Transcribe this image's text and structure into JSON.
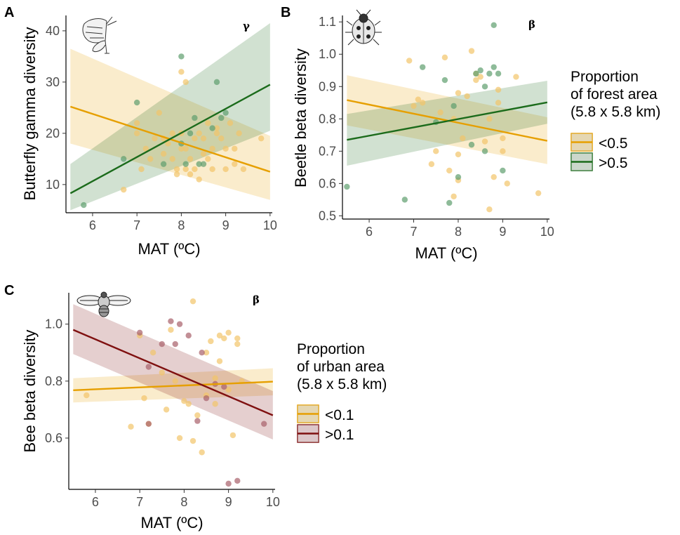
{
  "figure": {
    "panels": [
      {
        "letter": "A",
        "metric": "γ",
        "icon": "butterfly-icon"
      },
      {
        "letter": "B",
        "metric": "β",
        "icon": "ladybird-beetle-icon"
      },
      {
        "letter": "C",
        "metric": "β",
        "icon": "bee-icon"
      }
    ],
    "legends": [
      {
        "title_lines": [
          "Proportion",
          "of forest area",
          "(5.8 x 5.8 km)"
        ],
        "items": [
          "<0.5",
          ">0.5"
        ]
      },
      {
        "title_lines": [
          "Proportion",
          "of urban area",
          "(5.8 x 5.8 km)"
        ],
        "items": [
          "<0.1",
          ">0.1"
        ]
      }
    ]
  },
  "colors": {
    "orange": "#E69F00",
    "green": "#1B6B1B",
    "green_point": "#5E9E6E",
    "darkred": "#7F1010",
    "darkred_point": "#A8606A"
  },
  "chart_data": [
    {
      "type": "scatter",
      "panel": "A",
      "xlabel": "MAT (ºC)",
      "ylabel": "Butterfly gamma diversity",
      "xlim": [
        5.4,
        10.05
      ],
      "ylim": [
        4.5,
        43
      ],
      "xticks": [
        6,
        7,
        8,
        9,
        10
      ],
      "yticks": [
        10,
        20,
        30,
        40
      ],
      "grid": false,
      "legend": "right",
      "series": [
        {
          "name": "<0.5",
          "color": "#E69F00",
          "points": [
            [
              6.7,
              9
            ],
            [
              7.0,
              22
            ],
            [
              7.0,
              20
            ],
            [
              7.1,
              13
            ],
            [
              7.2,
              17
            ],
            [
              7.3,
              15
            ],
            [
              7.4,
              19
            ],
            [
              7.5,
              24
            ],
            [
              7.6,
              16
            ],
            [
              7.6,
              19
            ],
            [
              7.7,
              18
            ],
            [
              7.8,
              20
            ],
            [
              7.8,
              15
            ],
            [
              7.9,
              13
            ],
            [
              7.9,
              12
            ],
            [
              8.0,
              32
            ],
            [
              8.0,
              17
            ],
            [
              8.0,
              20
            ],
            [
              8.1,
              30
            ],
            [
              8.1,
              17
            ],
            [
              8.1,
              13
            ],
            [
              8.2,
              12
            ],
            [
              8.2,
              15
            ],
            [
              8.3,
              19
            ],
            [
              8.3,
              13
            ],
            [
              8.4,
              20
            ],
            [
              8.4,
              11
            ],
            [
              8.5,
              19
            ],
            [
              8.5,
              16
            ],
            [
              8.6,
              22
            ],
            [
              8.6,
              15
            ],
            [
              8.7,
              17
            ],
            [
              8.7,
              13
            ],
            [
              8.8,
              20
            ],
            [
              8.8,
              21
            ],
            [
              8.9,
              19
            ],
            [
              9.0,
              17
            ],
            [
              9.0,
              13
            ],
            [
              9.1,
              22
            ],
            [
              9.2,
              17
            ],
            [
              9.2,
              14
            ],
            [
              9.3,
              20
            ],
            [
              9.4,
              13
            ],
            [
              9.8,
              19
            ]
          ],
          "fit": {
            "x": [
              5.5,
              10.0
            ],
            "y_start": 25.2,
            "y_end": 12.5,
            "ci_lower": [
              18.0,
              7.0
            ],
            "ci_upper": [
              36.5,
              19.5
            ]
          }
        },
        {
          "name": ">0.5",
          "color": "#1B6B1B",
          "points": [
            [
              5.8,
              6
            ],
            [
              6.7,
              15
            ],
            [
              7.0,
              26
            ],
            [
              7.6,
              14
            ],
            [
              8.0,
              35
            ],
            [
              8.0,
              18
            ],
            [
              8.1,
              14
            ],
            [
              8.2,
              20
            ],
            [
              8.3,
              23
            ],
            [
              8.4,
              14
            ],
            [
              8.5,
              14
            ],
            [
              8.7,
              21
            ],
            [
              8.8,
              30
            ],
            [
              8.9,
              23
            ],
            [
              9.0,
              24
            ]
          ],
          "fit": {
            "x": [
              5.5,
              10.0
            ],
            "y_start": 8.3,
            "y_end": 29.5,
            "ci_lower": [
              5.0,
              20.5
            ],
            "ci_upper": [
              14.0,
              41.5
            ]
          }
        }
      ]
    },
    {
      "type": "scatter",
      "panel": "B",
      "xlabel": "MAT (ºC)",
      "ylabel": "Beetle beta diversity",
      "xlim": [
        5.4,
        10.05
      ],
      "ylim": [
        0.49,
        1.12
      ],
      "xticks": [
        6,
        7,
        8,
        9,
        10
      ],
      "yticks": [
        0.5,
        0.6,
        0.7,
        0.8,
        0.9,
        1.0,
        1.1
      ],
      "grid": false,
      "legend": "right",
      "series": [
        {
          "name": "<0.5",
          "color": "#E69F00",
          "points": [
            [
              6.9,
              0.98
            ],
            [
              7.0,
              0.84
            ],
            [
              7.1,
              0.86
            ],
            [
              7.2,
              0.85
            ],
            [
              7.4,
              0.66
            ],
            [
              7.5,
              0.7
            ],
            [
              7.6,
              0.82
            ],
            [
              7.7,
              0.99
            ],
            [
              7.8,
              0.64
            ],
            [
              7.9,
              0.8
            ],
            [
              7.9,
              0.56
            ],
            [
              8.0,
              0.88
            ],
            [
              8.0,
              0.69
            ],
            [
              8.0,
              0.61
            ],
            [
              8.1,
              0.74
            ],
            [
              8.2,
              0.87
            ],
            [
              8.3,
              1.01
            ],
            [
              8.4,
              0.92
            ],
            [
              8.4,
              0.94
            ],
            [
              8.5,
              0.93
            ],
            [
              8.6,
              0.73
            ],
            [
              8.7,
              0.8
            ],
            [
              8.7,
              0.52
            ],
            [
              8.8,
              0.62
            ],
            [
              8.9,
              0.85
            ],
            [
              8.9,
              0.89
            ],
            [
              9.0,
              0.74
            ],
            [
              9.0,
              0.7
            ],
            [
              9.1,
              0.6
            ],
            [
              9.3,
              0.93
            ],
            [
              9.8,
              0.57
            ]
          ],
          "fit": {
            "x": [
              5.5,
              10.0
            ],
            "y_start": 0.858,
            "y_end": 0.732,
            "ci_lower": [
              0.78,
              0.66
            ],
            "ci_upper": [
              0.935,
              0.805
            ]
          }
        },
        {
          "name": ">0.5",
          "color": "#1B6B1B",
          "points": [
            [
              5.5,
              0.59
            ],
            [
              6.8,
              0.55
            ],
            [
              7.2,
              0.96
            ],
            [
              7.5,
              0.79
            ],
            [
              7.7,
              0.92
            ],
            [
              7.8,
              0.54
            ],
            [
              7.9,
              0.84
            ],
            [
              8.0,
              0.62
            ],
            [
              8.3,
              0.72
            ],
            [
              8.4,
              0.94
            ],
            [
              8.5,
              0.95
            ],
            [
              8.6,
              0.9
            ],
            [
              8.6,
              0.7
            ],
            [
              8.7,
              0.94
            ],
            [
              8.8,
              1.09
            ],
            [
              8.8,
              0.96
            ],
            [
              8.9,
              0.94
            ],
            [
              9.0,
              0.64
            ]
          ],
          "fit": {
            "x": [
              5.5,
              10.0
            ],
            "y_start": 0.735,
            "y_end": 0.851,
            "ci_lower": [
              0.655,
              0.785
            ],
            "ci_upper": [
              0.815,
              0.918
            ]
          }
        }
      ]
    },
    {
      "type": "scatter",
      "panel": "C",
      "xlabel": "MAT (ºC)",
      "ylabel": "Bee beta diversity",
      "xlim": [
        5.4,
        10.05
      ],
      "ylim": [
        0.42,
        1.11
      ],
      "xticks": [
        6,
        7,
        8,
        9,
        10
      ],
      "yticks": [
        0.6,
        0.8,
        1.0
      ],
      "grid": false,
      "legend": "right",
      "series": [
        {
          "name": "<0.1",
          "color": "#E69F00",
          "points": [
            [
              5.8,
              0.75
            ],
            [
              6.8,
              0.64
            ],
            [
              7.0,
              0.96
            ],
            [
              7.1,
              0.74
            ],
            [
              7.2,
              0.65
            ],
            [
              7.3,
              0.9
            ],
            [
              7.5,
              0.83
            ],
            [
              7.6,
              0.7
            ],
            [
              7.7,
              0.98
            ],
            [
              7.8,
              0.8
            ],
            [
              7.9,
              0.6
            ],
            [
              8.0,
              0.73
            ],
            [
              8.1,
              0.72
            ],
            [
              8.2,
              0.59
            ],
            [
              8.2,
              1.08
            ],
            [
              8.3,
              0.68
            ],
            [
              8.4,
              0.55
            ],
            [
              8.5,
              0.9
            ],
            [
              8.5,
              0.75
            ],
            [
              8.6,
              0.94
            ],
            [
              8.7,
              0.81
            ],
            [
              8.7,
              0.72
            ],
            [
              8.8,
              0.87
            ],
            [
              8.8,
              0.96
            ],
            [
              8.9,
              0.95
            ],
            [
              9.0,
              0.97
            ],
            [
              9.0,
              0.77
            ],
            [
              9.1,
              0.61
            ],
            [
              9.2,
              0.95
            ],
            [
              9.2,
              0.93
            ],
            [
              9.3,
              0.8
            ]
          ],
          "fit": {
            "x": [
              5.5,
              10.0
            ],
            "y_start": 0.768,
            "y_end": 0.798,
            "ci_lower": [
              0.725,
              0.75
            ],
            "ci_upper": [
              0.81,
              0.845
            ]
          }
        },
        {
          "name": ">0.1",
          "color": "#7F1010",
          "points": [
            [
              7.0,
              0.97
            ],
            [
              7.2,
              0.85
            ],
            [
              7.2,
              0.65
            ],
            [
              7.5,
              0.93
            ],
            [
              7.7,
              1.01
            ],
            [
              7.8,
              0.93
            ],
            [
              7.9,
              1.0
            ],
            [
              8.1,
              0.96
            ],
            [
              8.3,
              0.66
            ],
            [
              8.4,
              0.9
            ],
            [
              8.5,
              0.74
            ],
            [
              8.7,
              0.79
            ],
            [
              8.9,
              0.78
            ],
            [
              9.0,
              0.44
            ],
            [
              9.2,
              0.45
            ],
            [
              9.8,
              0.65
            ]
          ],
          "fit": {
            "x": [
              5.5,
              10.0
            ],
            "y_start": 0.98,
            "y_end": 0.68,
            "ci_lower": [
              0.895,
              0.595
            ],
            "ci_upper": [
              1.07,
              0.765
            ]
          }
        }
      ]
    }
  ]
}
